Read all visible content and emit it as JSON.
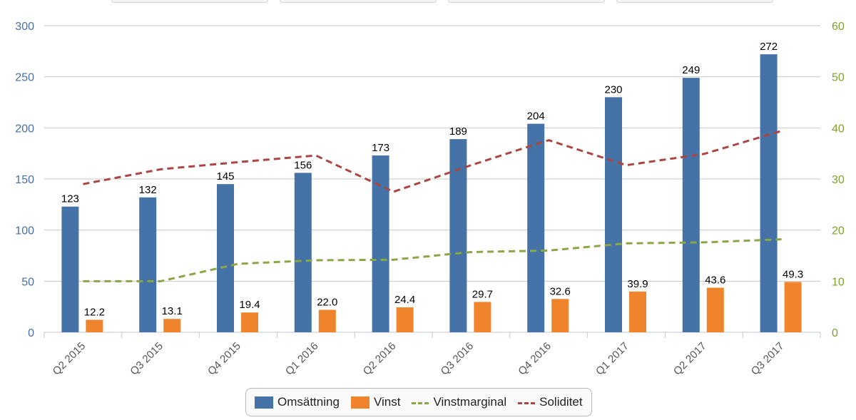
{
  "chart_data": {
    "type": "bar",
    "categories": [
      "Q2 2015",
      "Q3 2015",
      "Q4 2015",
      "Q1 2016",
      "Q2 2016",
      "Q3 2016",
      "Q4 2016",
      "Q1 2017",
      "Q2 2017",
      "Q3 2017"
    ],
    "series": [
      {
        "name": "Omsättning",
        "type": "bar",
        "axis": "left",
        "color": "#4572a7",
        "values": [
          123,
          132,
          145,
          156,
          173,
          189,
          204,
          230,
          249,
          272
        ],
        "labels": [
          "123",
          "132",
          "145",
          "156",
          "173",
          "189",
          "204",
          "230",
          "249",
          "272"
        ]
      },
      {
        "name": "Vinst",
        "type": "bar",
        "axis": "left",
        "color": "#f0842c",
        "values": [
          12.2,
          13.1,
          19.4,
          22.0,
          24.4,
          29.7,
          32.6,
          39.9,
          43.6,
          49.3
        ],
        "labels": [
          "12.2",
          "13.1",
          "19.4",
          "22.0",
          "24.4",
          "29.7",
          "32.6",
          "39.9",
          "43.6",
          "49.3"
        ]
      },
      {
        "name": "Vinstmarginal",
        "type": "line",
        "style": "dashed",
        "axis": "right",
        "color": "#8aa645",
        "values": [
          10,
          10,
          13.4,
          14.1,
          14.2,
          15.7,
          16.0,
          17.4,
          17.6,
          18.2
        ]
      },
      {
        "name": "Soliditet",
        "type": "line",
        "style": "dashed",
        "axis": "right",
        "color": "#aa4643",
        "values": [
          29,
          31.9,
          33.3,
          34.6,
          27.5,
          32.7,
          37.6,
          32.7,
          34.9,
          39.4
        ]
      }
    ],
    "y_left": {
      "range": [
        0,
        300
      ],
      "ticks": [
        "0",
        "50",
        "100",
        "150",
        "200",
        "250",
        "300"
      ],
      "color": "#4a6fa5"
    },
    "y_right": {
      "range": [
        0,
        60
      ],
      "ticks": [
        "0",
        "10",
        "20",
        "30",
        "40",
        "50",
        "60"
      ],
      "color": "#7fa12e"
    },
    "grid": true,
    "legend_position": "bottom",
    "title": "",
    "xlabel": "",
    "ylabel": ""
  },
  "legend": {
    "omsattning": "Omsättning",
    "vinst": "Vinst",
    "vinstmarginal": "Vinstmarginal",
    "soliditet": "Soliditet"
  }
}
